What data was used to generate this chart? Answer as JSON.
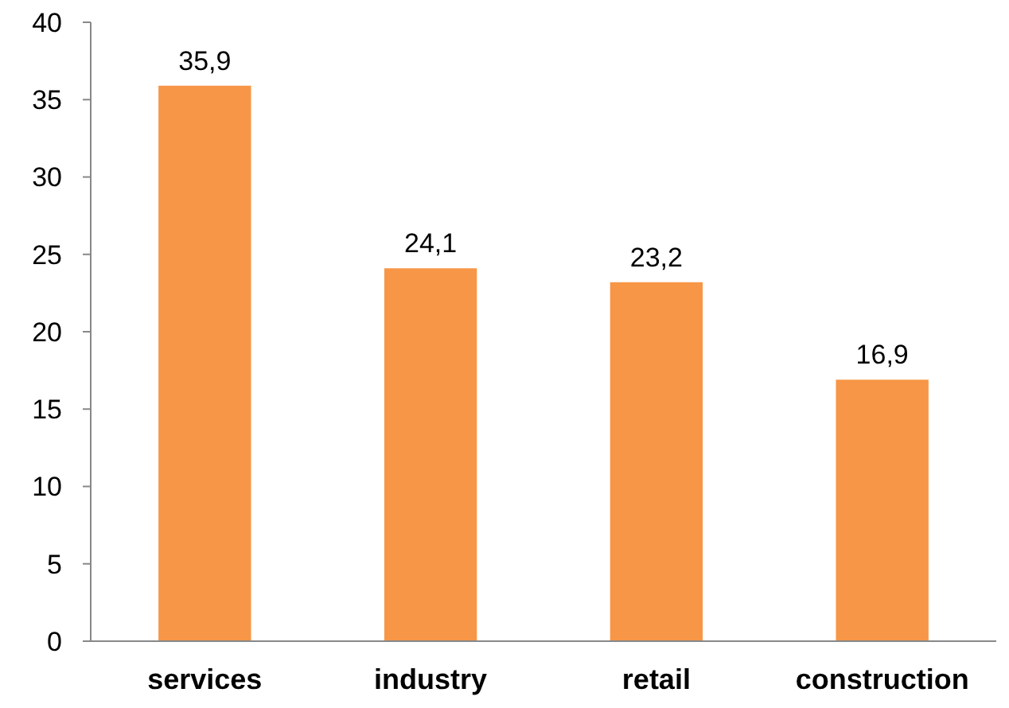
{
  "chart_data": {
    "type": "bar",
    "categories": [
      "services",
      "industry",
      "retail",
      "construction"
    ],
    "values": [
      35.9,
      24.1,
      23.2,
      16.9
    ],
    "color": "#f79646",
    "value_labels": [
      "35,9",
      "24,1",
      "23,2",
      "16,9"
    ],
    "ylim": [
      0,
      40
    ],
    "yticks": [
      0,
      5,
      10,
      15,
      20,
      25,
      30,
      35,
      40
    ],
    "grid": false
  }
}
